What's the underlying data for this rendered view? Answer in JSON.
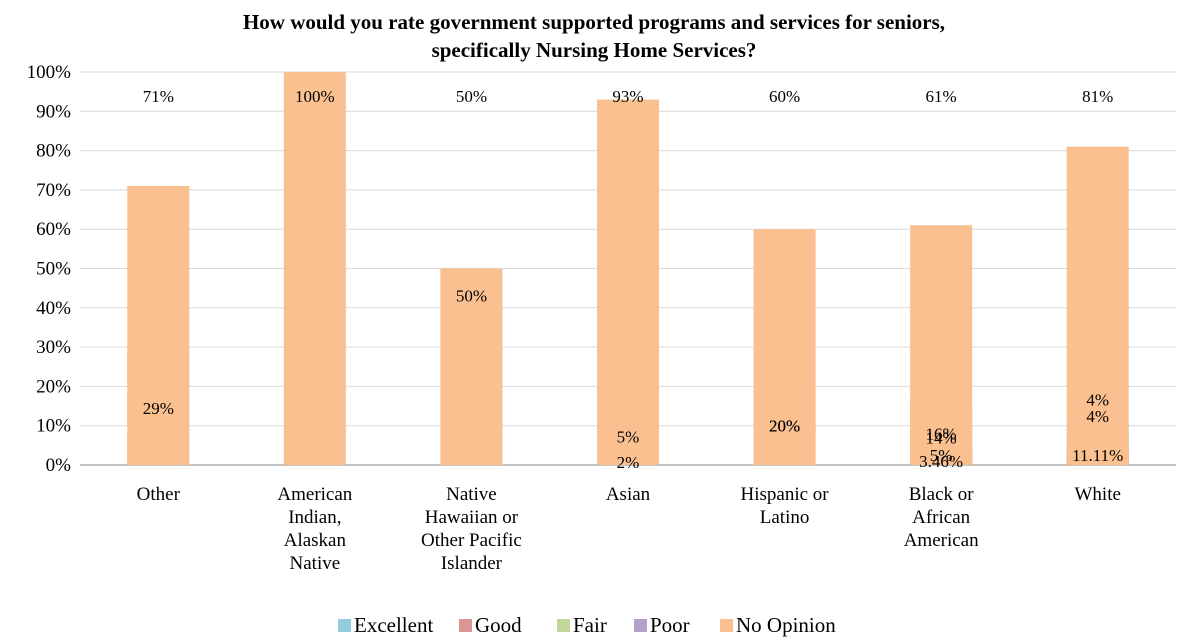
{
  "chart_data": {
    "type": "bar",
    "stacked": true,
    "title": "How would you rate government supported programs and services for seniors, specifically Nursing Home Services?",
    "title_lines": [
      "How would you rate government supported programs and services for seniors,",
      "specifically Nursing Home Services?"
    ],
    "xlabel": "",
    "ylabel": "",
    "ylim": [
      0,
      100
    ],
    "yticks": [
      "0%",
      "10%",
      "20%",
      "30%",
      "40%",
      "50%",
      "60%",
      "70%",
      "80%",
      "90%",
      "100%"
    ],
    "grid": true,
    "legend_position": "bottom",
    "categories": [
      [
        "Other"
      ],
      [
        "American",
        "Indian,",
        "Alaskan",
        "Native"
      ],
      [
        "Native",
        "Hawaiian or",
        "Other Pacific",
        "Islander"
      ],
      [
        "Asian"
      ],
      [
        "Hispanic or",
        "Latino"
      ],
      [
        "Black or",
        "African",
        "American"
      ],
      [
        "White"
      ]
    ],
    "series": [
      {
        "name": "Excellent",
        "color": "#93CDDD",
        "values": [
          0,
          0,
          0,
          0,
          0,
          3.46,
          11.11
        ],
        "labels": [
          null,
          null,
          null,
          null,
          null,
          "3.46%",
          "11.11%"
        ]
      },
      {
        "name": "Good",
        "color": "#D99694",
        "values": [
          0,
          0,
          0,
          0,
          0,
          14,
          4
        ],
        "labels": [
          null,
          null,
          null,
          null,
          null,
          "14%",
          "4%"
        ]
      },
      {
        "name": "Fair",
        "color": "#C3D69B",
        "values": [
          29,
          0,
          0,
          2,
          20,
          16,
          0
        ],
        "labels": [
          "29%",
          null,
          null,
          "2%",
          "20%",
          "16%",
          null
        ]
      },
      {
        "name": "Poor",
        "color": "#B3A2C7",
        "values": [
          0,
          0,
          50,
          5,
          20,
          5,
          4
        ],
        "labels": [
          null,
          null,
          "50%",
          "5%",
          "20%",
          "5%",
          "4%"
        ]
      },
      {
        "name": "No Opinion",
        "color": "#FAC090",
        "values": [
          71,
          100,
          50,
          93,
          60,
          61,
          81
        ],
        "labels": [
          "71%",
          "100%",
          "50%",
          "93%",
          "60%",
          "61%",
          "81%"
        ]
      }
    ]
  }
}
